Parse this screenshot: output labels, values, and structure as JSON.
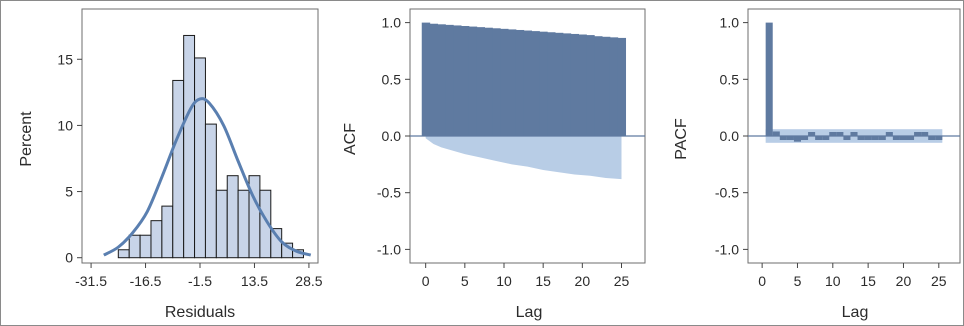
{
  "chart_data": [
    {
      "type": "bar",
      "subtype": "histogram_with_density",
      "xlabel": "Residuals",
      "ylabel": "Percent",
      "xticks": [
        "-31.5",
        "-16.5",
        "-1.5",
        "13.5",
        "28.5"
      ],
      "xtick_values": [
        -31.5,
        -16.5,
        -1.5,
        13.5,
        28.5
      ],
      "yticks": [
        "0",
        "5",
        "10",
        "15"
      ],
      "ytick_values": [
        0,
        5,
        10,
        15
      ],
      "xlim": [
        -34,
        31
      ],
      "ylim": [
        -0.4,
        18.8
      ],
      "bins": [
        {
          "x0": -24,
          "x1": -21,
          "value": 0.6
        },
        {
          "x0": -21,
          "x1": -18,
          "value": 1.7
        },
        {
          "x0": -18,
          "x1": -15,
          "value": 1.7
        },
        {
          "x0": -15,
          "x1": -12,
          "value": 2.8
        },
        {
          "x0": -12,
          "x1": -9,
          "value": 3.9
        },
        {
          "x0": -9,
          "x1": -6,
          "value": 13.4
        },
        {
          "x0": -6,
          "x1": -3,
          "value": 16.8
        },
        {
          "x0": -3,
          "x1": 0,
          "value": 15.1
        },
        {
          "x0": 0,
          "x1": 3,
          "value": 10.1
        },
        {
          "x0": 3,
          "x1": 6,
          "value": 5.1
        },
        {
          "x0": 6,
          "x1": 9,
          "value": 6.2
        },
        {
          "x0": 9,
          "x1": 12,
          "value": 5.1
        },
        {
          "x0": 12,
          "x1": 15,
          "value": 6.2
        },
        {
          "x0": 15,
          "x1": 18,
          "value": 5.1
        },
        {
          "x0": 18,
          "x1": 21,
          "value": 2.2
        },
        {
          "x0": 21,
          "x1": 24,
          "value": 1.1
        },
        {
          "x0": 24,
          "x1": 27,
          "value": 0.6
        }
      ],
      "density_curve": {
        "x": [
          -28,
          -24,
          -20,
          -16,
          -12,
          -8,
          -4,
          -1.5,
          1,
          5,
          9,
          13,
          17,
          21,
          25,
          29
        ],
        "y": [
          0.2,
          0.8,
          1.9,
          3.5,
          6.1,
          8.9,
          11.3,
          12.0,
          11.7,
          10.0,
          7.3,
          4.7,
          2.7,
          1.2,
          0.5,
          0.2
        ]
      },
      "colors": {
        "bar_fill": "#c8d4e8",
        "bar_edge": "#1a1a1a",
        "curve": "#5a7fb0"
      }
    },
    {
      "type": "bar",
      "subtype": "acf",
      "xlabel": "Lag",
      "ylabel": "ACF",
      "xticks": [
        "0",
        "5",
        "10",
        "15",
        "20",
        "25"
      ],
      "xtick_values": [
        0,
        5,
        10,
        15,
        20,
        25
      ],
      "yticks": [
        "1.0",
        "0.5",
        "0.0",
        "-0.5",
        "-1.0"
      ],
      "ytick_values": [
        1.0,
        0.5,
        0.0,
        -0.5,
        -1.0
      ],
      "xlim": [
        -2,
        28
      ],
      "ylim": [
        -1.12,
        1.12
      ],
      "lags": [
        0,
        1,
        2,
        3,
        4,
        5,
        6,
        7,
        8,
        9,
        10,
        11,
        12,
        13,
        14,
        15,
        16,
        17,
        18,
        19,
        20,
        21,
        22,
        23,
        24,
        25
      ],
      "values": [
        1.0,
        0.99,
        0.985,
        0.98,
        0.975,
        0.97,
        0.965,
        0.96,
        0.955,
        0.95,
        0.945,
        0.94,
        0.935,
        0.93,
        0.925,
        0.92,
        0.915,
        0.91,
        0.905,
        0.9,
        0.895,
        0.89,
        0.88,
        0.875,
        0.87,
        0.865
      ],
      "confidence_band": {
        "x": [
          0,
          1,
          2,
          3,
          4,
          5,
          7,
          9,
          11,
          13,
          15,
          17,
          19,
          21,
          23,
          25
        ],
        "lower": [
          -0.02,
          -0.07,
          -0.1,
          -0.12,
          -0.14,
          -0.16,
          -0.19,
          -0.22,
          -0.25,
          -0.27,
          -0.3,
          -0.32,
          -0.34,
          -0.35,
          -0.37,
          -0.38
        ]
      },
      "colors": {
        "bars": "#5f7aa0",
        "band": "#b8cde6",
        "zero_line": "#5f7aa0"
      }
    },
    {
      "type": "bar",
      "subtype": "pacf",
      "xlabel": "Lag",
      "ylabel": "PACF",
      "xticks": [
        "0",
        "5",
        "10",
        "15",
        "20",
        "25"
      ],
      "xtick_values": [
        0,
        5,
        10,
        15,
        20,
        25
      ],
      "yticks": [
        "1.0",
        "0.5",
        "0.0",
        "-0.5",
        "-1.0"
      ],
      "ytick_values": [
        1.0,
        0.5,
        0.0,
        -0.5,
        -1.0
      ],
      "xlim": [
        -2,
        28
      ],
      "ylim": [
        -1.12,
        1.12
      ],
      "lags": [
        1,
        2,
        3,
        4,
        5,
        6,
        7,
        8,
        9,
        10,
        11,
        12,
        13,
        14,
        15,
        16,
        17,
        18,
        19,
        20,
        21,
        22,
        23,
        24,
        25
      ],
      "values": [
        1.0,
        0.04,
        -0.01,
        -0.02,
        -0.05,
        -0.01,
        0.02,
        -0.02,
        -0.01,
        0.01,
        0.0,
        -0.01,
        0.03,
        -0.02,
        -0.03,
        -0.02,
        -0.03,
        0.01,
        -0.02,
        -0.03,
        -0.01,
        0.03,
        0.02,
        -0.02,
        -0.03
      ],
      "confidence_band": {
        "lower": -0.06,
        "upper": 0.06,
        "x_start": 1,
        "x_end": 25
      },
      "colors": {
        "bars": "#5f7aa0",
        "band": "#b8cde6",
        "zero_line": "#5f7aa0"
      }
    }
  ]
}
